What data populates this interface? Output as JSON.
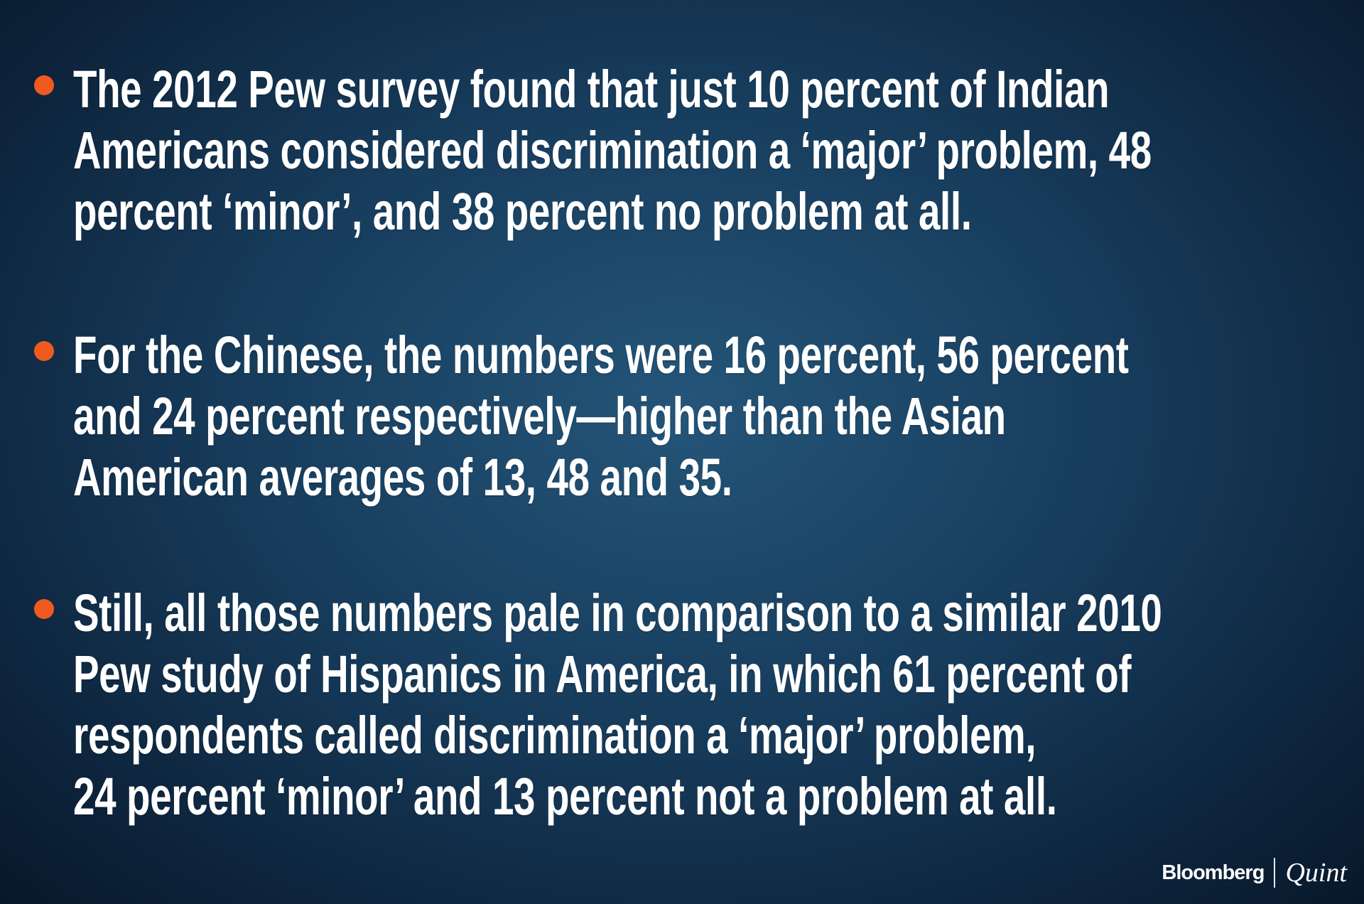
{
  "bullets": [
    {
      "lines": [
        "The 2012 Pew survey found that just 10 percent of Indian",
        "Americans considered discrimination a ‘major’ problem, 48",
        "percent ‘minor’, and 38 percent no problem at all."
      ]
    },
    {
      "lines": [
        "For the Chinese, the numbers were 16 percent,  56 percent",
        "and 24 percent respectively—higher than the Asian",
        "American averages of 13, 48 and 35."
      ]
    },
    {
      "lines": [
        "Still, all those numbers pale in comparison to a similar 2010",
        "Pew study of Hispanics in America, in which 61 percent of",
        "respondents called discrimination a ‘major’ problem,",
        "24 percent ‘minor’ and 13 percent not a problem at all."
      ]
    }
  ],
  "logo": {
    "brand": "Bloomberg",
    "product": "Quint"
  }
}
